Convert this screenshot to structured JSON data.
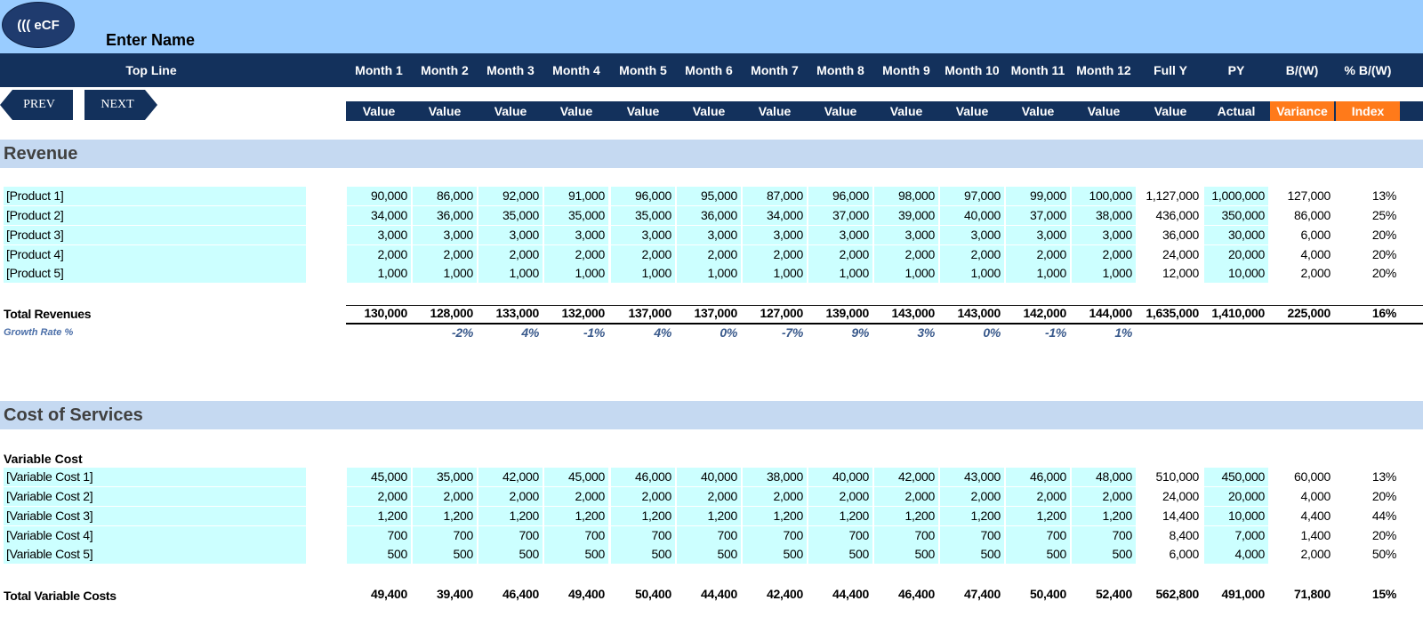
{
  "header": {
    "logo_text": "((( eCF",
    "company_name": "Enter Name",
    "top_line_label": "Top Line",
    "nav": {
      "prev": "PREV",
      "next": "NEXT"
    },
    "columns": [
      "Month 1",
      "Month 2",
      "Month 3",
      "Month 4",
      "Month 5",
      "Month 6",
      "Month 7",
      "Month 8",
      "Month 9",
      "Month 10",
      "Month 11",
      "Month 12",
      "Full Y",
      "PY",
      "B/(W)",
      "% B/(W)"
    ],
    "subheaders": [
      "Value",
      "Value",
      "Value",
      "Value",
      "Value",
      "Value",
      "Value",
      "Value",
      "Value",
      "Value",
      "Value",
      "Value",
      "Value",
      "Actual",
      "Variance",
      "Index"
    ]
  },
  "colors": {
    "top_bar": "#99ccff",
    "header_navy": "#13315c",
    "accent_orange": "#ff7a1a",
    "section_band": "#c5d9f1",
    "input_cell": "#ccffff"
  },
  "revenue": {
    "title": "Revenue",
    "rows": [
      {
        "label": "[Product 1]",
        "values": [
          "90,000",
          "86,000",
          "92,000",
          "91,000",
          "96,000",
          "95,000",
          "87,000",
          "96,000",
          "98,000",
          "97,000",
          "99,000",
          "100,000",
          "1,127,000",
          "1,000,000",
          "127,000",
          "13%"
        ]
      },
      {
        "label": "[Product 2]",
        "values": [
          "34,000",
          "36,000",
          "35,000",
          "35,000",
          "35,000",
          "36,000",
          "34,000",
          "37,000",
          "39,000",
          "40,000",
          "37,000",
          "38,000",
          "436,000",
          "350,000",
          "86,000",
          "25%"
        ]
      },
      {
        "label": "[Product 3]",
        "values": [
          "3,000",
          "3,000",
          "3,000",
          "3,000",
          "3,000",
          "3,000",
          "3,000",
          "3,000",
          "3,000",
          "3,000",
          "3,000",
          "3,000",
          "36,000",
          "30,000",
          "6,000",
          "20%"
        ]
      },
      {
        "label": "[Product 4]",
        "values": [
          "2,000",
          "2,000",
          "2,000",
          "2,000",
          "2,000",
          "2,000",
          "2,000",
          "2,000",
          "2,000",
          "2,000",
          "2,000",
          "2,000",
          "24,000",
          "20,000",
          "4,000",
          "20%"
        ]
      },
      {
        "label": "[Product 5]",
        "values": [
          "1,000",
          "1,000",
          "1,000",
          "1,000",
          "1,000",
          "1,000",
          "1,000",
          "1,000",
          "1,000",
          "1,000",
          "1,000",
          "1,000",
          "12,000",
          "10,000",
          "2,000",
          "20%"
        ]
      }
    ],
    "total": {
      "label": "Total Revenues",
      "values": [
        "130,000",
        "128,000",
        "133,000",
        "132,000",
        "137,000",
        "137,000",
        "127,000",
        "139,000",
        "143,000",
        "143,000",
        "142,000",
        "144,000",
        "1,635,000",
        "1,410,000",
        "225,000",
        "16%"
      ]
    },
    "growth": {
      "label": "Growth Rate %",
      "values": [
        "",
        "-2%",
        "4%",
        "-1%",
        "4%",
        "0%",
        "-7%",
        "9%",
        "3%",
        "0%",
        "-1%",
        "1%",
        "",
        "",
        "",
        ""
      ]
    }
  },
  "cost": {
    "title": "Cost of Services",
    "subheading": "Variable Cost",
    "rows": [
      {
        "label": "[Variable Cost 1]",
        "values": [
          "45,000",
          "35,000",
          "42,000",
          "45,000",
          "46,000",
          "40,000",
          "38,000",
          "40,000",
          "42,000",
          "43,000",
          "46,000",
          "48,000",
          "510,000",
          "450,000",
          "60,000",
          "13%"
        ]
      },
      {
        "label": "[Variable Cost 2]",
        "values": [
          "2,000",
          "2,000",
          "2,000",
          "2,000",
          "2,000",
          "2,000",
          "2,000",
          "2,000",
          "2,000",
          "2,000",
          "2,000",
          "2,000",
          "24,000",
          "20,000",
          "4,000",
          "20%"
        ]
      },
      {
        "label": "[Variable Cost 3]",
        "values": [
          "1,200",
          "1,200",
          "1,200",
          "1,200",
          "1,200",
          "1,200",
          "1,200",
          "1,200",
          "1,200",
          "1,200",
          "1,200",
          "1,200",
          "14,400",
          "10,000",
          "4,400",
          "44%"
        ]
      },
      {
        "label": "[Variable Cost 4]",
        "values": [
          "700",
          "700",
          "700",
          "700",
          "700",
          "700",
          "700",
          "700",
          "700",
          "700",
          "700",
          "700",
          "8,400",
          "7,000",
          "1,400",
          "20%"
        ]
      },
      {
        "label": "[Variable Cost 5]",
        "values": [
          "500",
          "500",
          "500",
          "500",
          "500",
          "500",
          "500",
          "500",
          "500",
          "500",
          "500",
          "500",
          "6,000",
          "4,000",
          "2,000",
          "50%"
        ]
      }
    ],
    "total": {
      "label": "Total Variable Costs",
      "values": [
        "49,400",
        "39,400",
        "46,400",
        "49,400",
        "50,400",
        "44,400",
        "42,400",
        "44,400",
        "46,400",
        "47,400",
        "50,400",
        "52,400",
        "562,800",
        "491,000",
        "71,800",
        "15%"
      ]
    }
  }
}
